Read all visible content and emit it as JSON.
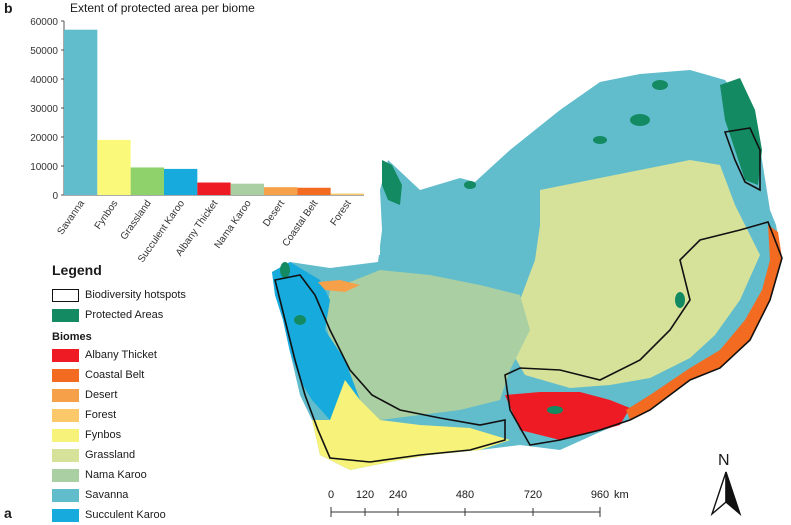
{
  "panels": {
    "chart_letter": "b",
    "map_letter": "a"
  },
  "colors": {
    "albany_thicket": "#ee1b24",
    "coastal_belt": "#f26b21",
    "desert": "#f7a04a",
    "forest": "#fbc86a",
    "fynbos": "#f6f27a",
    "grassland": "#d6e29a",
    "nama_karoo": "#a9cfa2",
    "savanna": "#61bccc",
    "succulent_karoo": "#16aadd",
    "protected": "#138a62",
    "hotspot": "#111111",
    "chart_grassland": "#8fd16b",
    "chart_fynbos": "#fbf97a"
  },
  "chart_data": {
    "type": "bar",
    "title": "Extent of protected area per biome",
    "xlabel": "",
    "ylabel": "",
    "categories": [
      "Savanna",
      "Fynbos",
      "Grassland",
      "Succulent Karoo",
      "Albany Thicket",
      "Nama Karoo",
      "Desert",
      "Coastal Belt",
      "Forest"
    ],
    "values": [
      57000,
      19000,
      9500,
      9000,
      4300,
      3900,
      2700,
      2500,
      500
    ],
    "bar_colors": [
      "#61bccc",
      "#fbf97a",
      "#8fd16b",
      "#16aadd",
      "#ee1b24",
      "#a9cfa2",
      "#f7a04a",
      "#f26b21",
      "#fbc86a"
    ],
    "ylim": [
      0,
      60000
    ],
    "yticks": [
      "0",
      "10000",
      "20000",
      "30000",
      "40000",
      "50000",
      "60000"
    ],
    "grid": false,
    "legend": "none"
  },
  "legend": {
    "title": "Legend",
    "hotspots_label": "Biodiversity hotspots",
    "protected_label": "Protected Areas",
    "biomes_title": "Biomes",
    "biomes": [
      {
        "label": "Albany Thicket",
        "color": "#ee1b24"
      },
      {
        "label": "Coastal Belt",
        "color": "#f26b21"
      },
      {
        "label": "Desert",
        "color": "#f7a04a"
      },
      {
        "label": "Forest",
        "color": "#fbc86a"
      },
      {
        "label": "Fynbos",
        "color": "#f6f27a"
      },
      {
        "label": "Grassland",
        "color": "#d6e29a"
      },
      {
        "label": "Nama Karoo",
        "color": "#a9cfa2"
      },
      {
        "label": "Savanna",
        "color": "#61bccc"
      },
      {
        "label": "Succulent Karoo",
        "color": "#16aadd"
      }
    ]
  },
  "scale_bar": {
    "labels": [
      "0",
      "120",
      "240",
      "480",
      "720",
      "960"
    ],
    "unit": "km"
  },
  "north": {
    "label": "N"
  }
}
